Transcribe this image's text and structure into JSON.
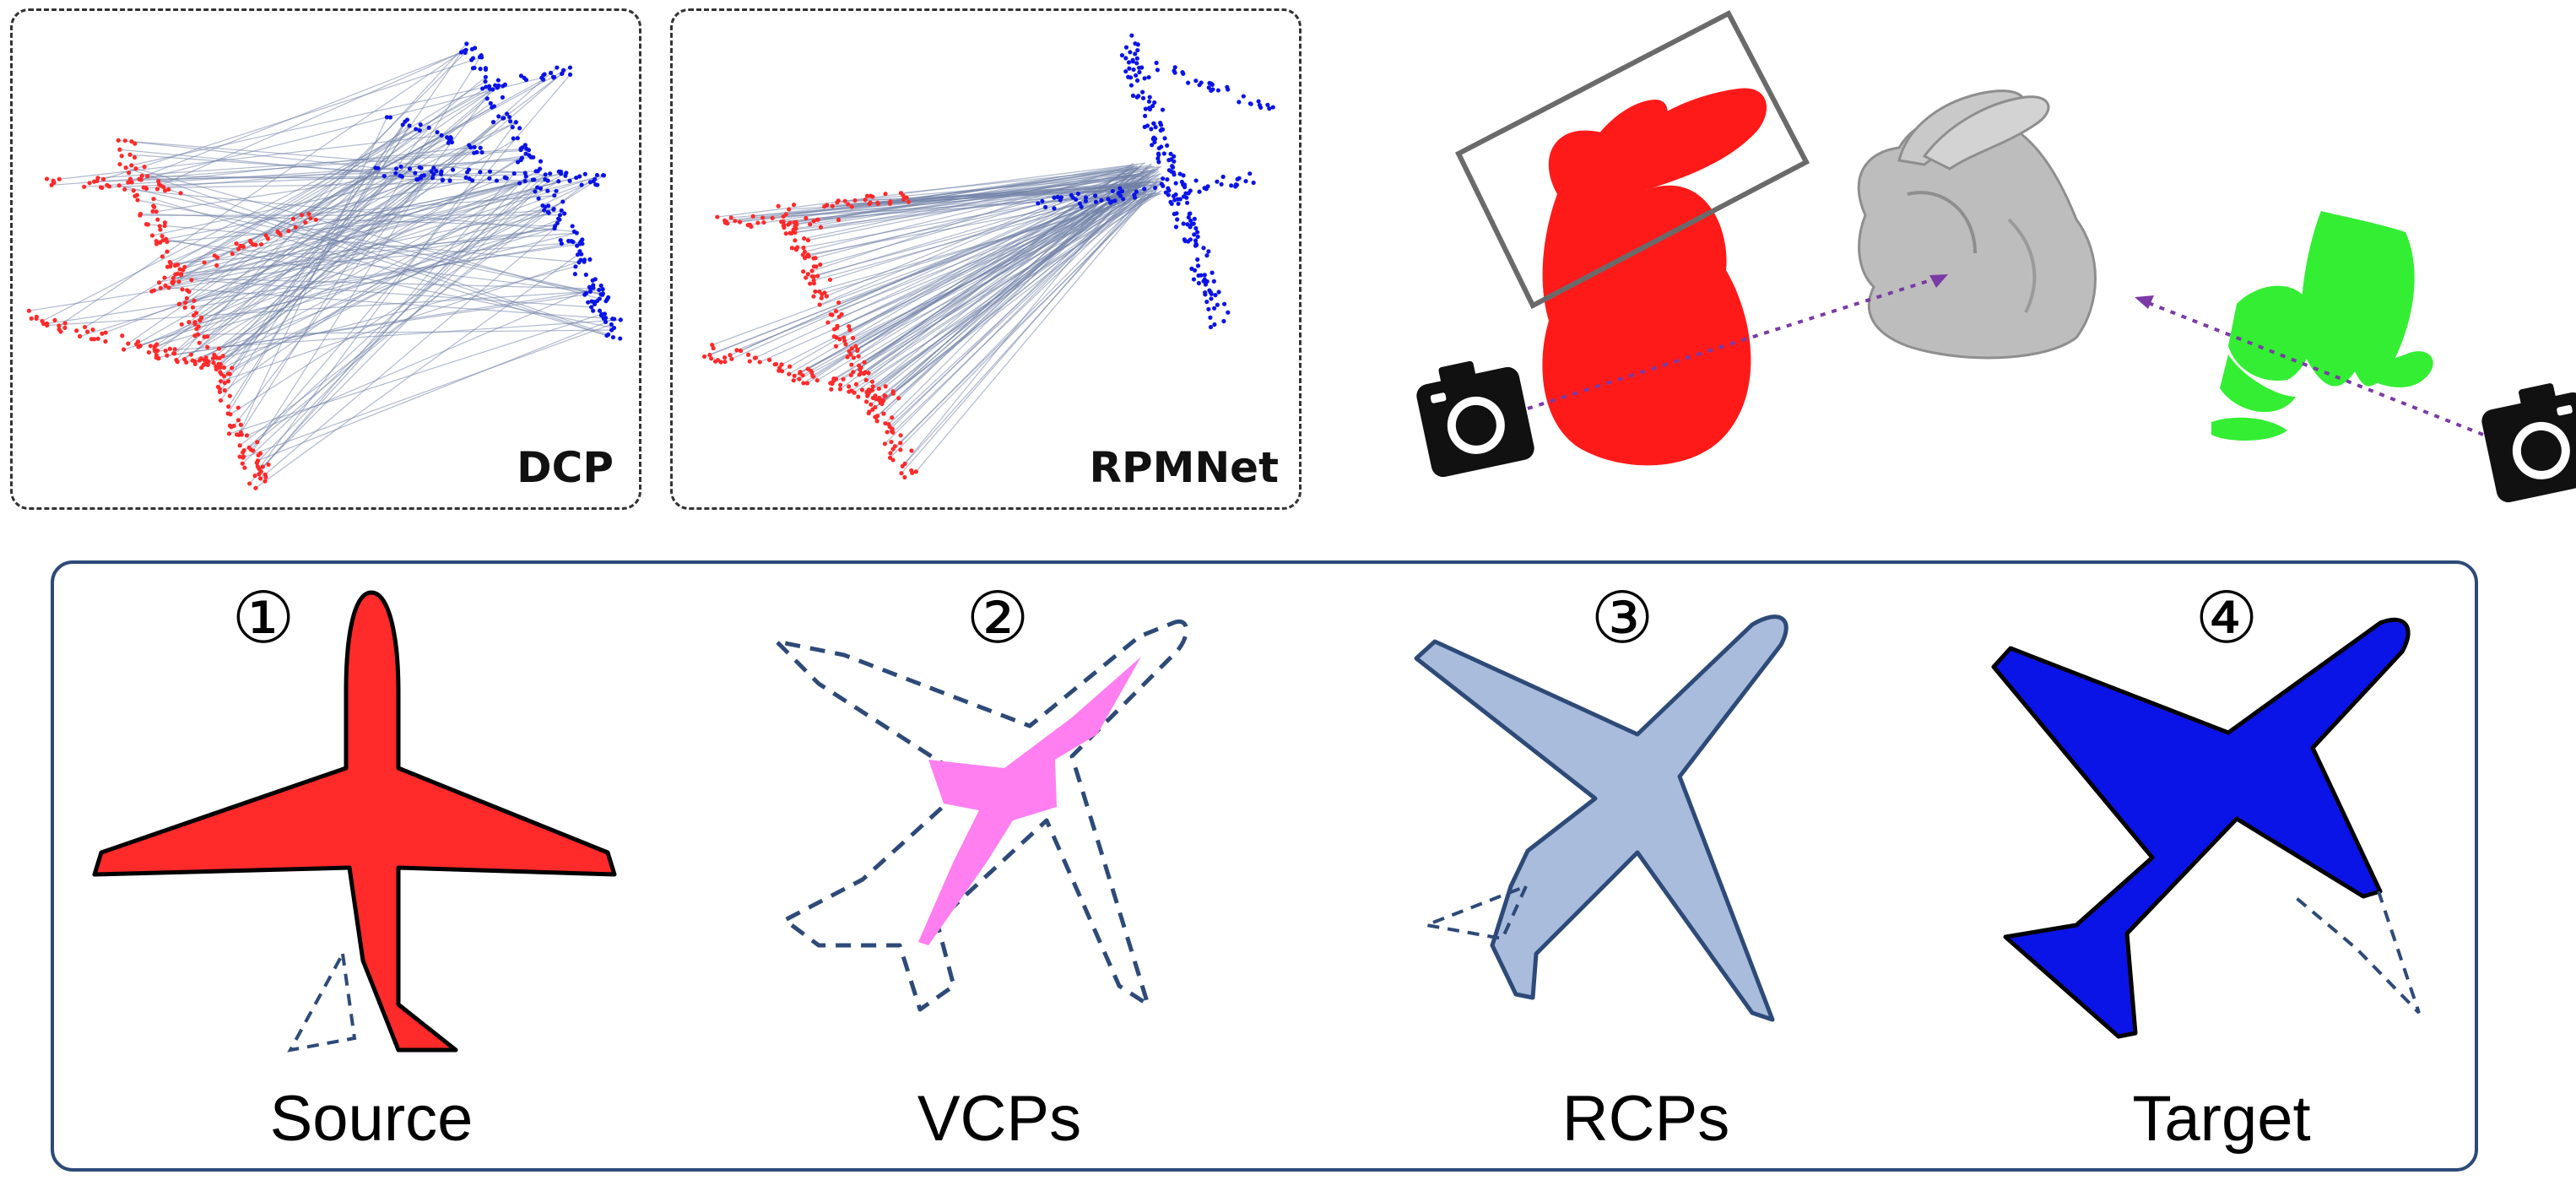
{
  "panels": {
    "left_label": "DCP",
    "middle_label": "RPMNet"
  },
  "steps": [
    {
      "number": "①",
      "label": "Source"
    },
    {
      "number": "②",
      "label": "VCPs"
    },
    {
      "number": "③",
      "label": "RCPs"
    },
    {
      "number": "④",
      "label": "Target"
    }
  ],
  "colors": {
    "source": "#ff2a2a",
    "target": "#0b14e6",
    "vcp": "#ff7ff0",
    "rcp": "#a9bcdc",
    "correspondence": "#6f7fa6",
    "frame": "#2d4a78",
    "partial_view": "#33ee33"
  },
  "icons": [
    "camera-icon-left",
    "camera-icon-right"
  ]
}
